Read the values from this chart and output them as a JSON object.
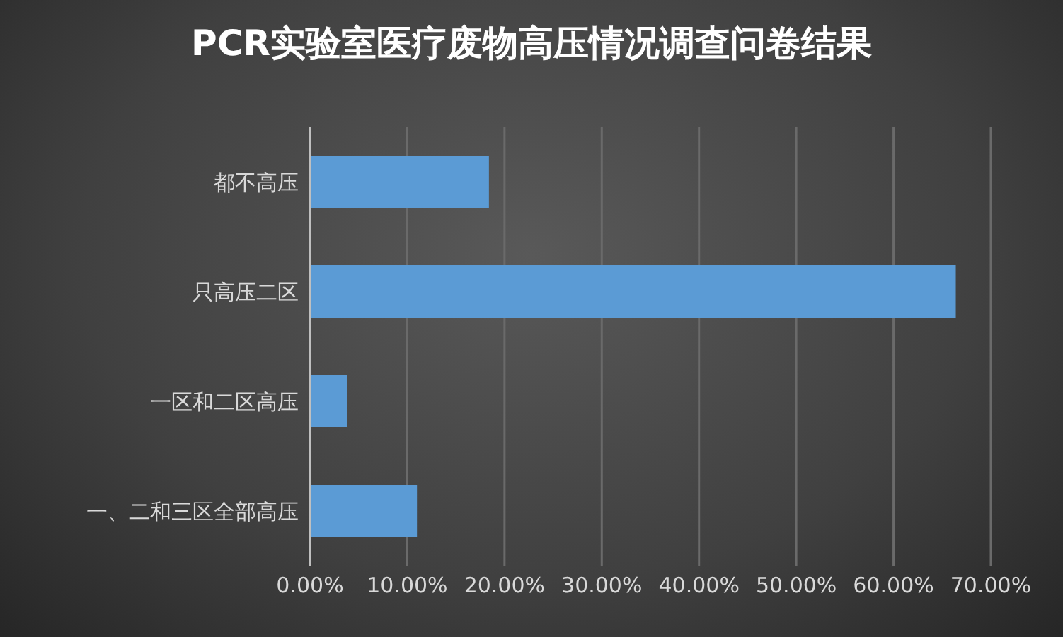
{
  "chart_data": {
    "type": "bar",
    "title": "PCR实验室医疗废物高压情况调查问卷结果",
    "orientation": "horizontal",
    "categories": [
      "都不高压",
      "只高压二区",
      "一区和二区高压",
      "一、二和三区全部高压"
    ],
    "values": [
      18.4,
      66.4,
      3.8,
      11.0
    ],
    "color": "#5b9bd5",
    "xlim": [
      0,
      70
    ],
    "xticks": [
      {
        "value": 0,
        "label": "0.00%"
      },
      {
        "value": 10,
        "label": "10.00%"
      },
      {
        "value": 20,
        "label": "20.00%"
      },
      {
        "value": 30,
        "label": "30.00%"
      },
      {
        "value": 40,
        "label": "40.00%"
      },
      {
        "value": 50,
        "label": "50.00%"
      },
      {
        "value": 60,
        "label": "60.00%"
      },
      {
        "value": 70,
        "label": "70.00%"
      }
    ],
    "grid": "x"
  }
}
